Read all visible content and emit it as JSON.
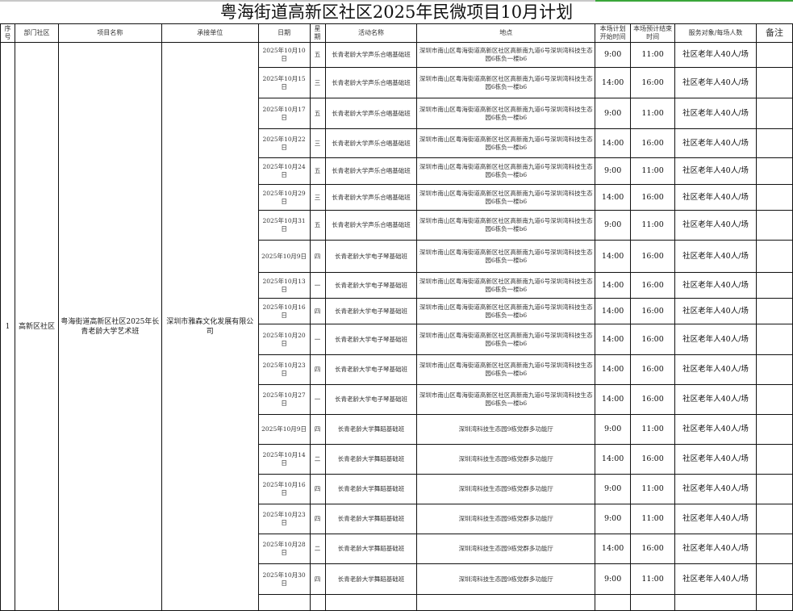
{
  "title": "粤海街道高新区社区2025年民微项目10月计划",
  "headers": [
    "序号",
    "部门社区",
    "项目名称",
    "承接单位",
    "日期",
    "星期",
    "活动名称",
    "地点",
    "本场计划开始时间",
    "本场预计结束时间",
    "服务对象/每场人数",
    "备注"
  ],
  "project": {
    "no": "1",
    "community": "高新区社区",
    "name": "粤海街道高新区社区2025年长青老龄大学艺术班",
    "contractor": "深圳市雅森文化发展有限公司"
  },
  "rows": [
    {
      "date": "2025年10月10日",
      "weekday": "五",
      "activity": "长青老龄大学声乐合唱基础班",
      "location": "深圳市南山区粤海街道高新区社区高新南九道6号深圳湾科技生态园6栋负一楼b6",
      "start": "9:00",
      "end": "11:00",
      "target": "社区老年人40人/场",
      "note": ""
    },
    {
      "date": "2025年10月15日",
      "weekday": "三",
      "activity": "长青老龄大学声乐合唱基础班",
      "location": "深圳市南山区粤海街道高新区社区高新南九道6号深圳湾科技生态园6栋负一楼b6",
      "start": "14:00",
      "end": "16:00",
      "target": "社区老年人40人/场",
      "note": ""
    },
    {
      "date": "2025年10月17日",
      "weekday": "五",
      "activity": "长青老龄大学声乐合唱基础班",
      "location": "深圳市南山区粤海街道高新区社区高新南九道6号深圳湾科技生态园6栋负一楼b6",
      "start": "9:00",
      "end": "11:00",
      "target": "社区老年人40人/场",
      "note": ""
    },
    {
      "date": "2025年10月22日",
      "weekday": "三",
      "activity": "长青老龄大学声乐合唱基础班",
      "location": "深圳市南山区粤海街道高新区社区高新南九道6号深圳湾科技生态园6栋负一楼b6",
      "start": "14:00",
      "end": "16:00",
      "target": "社区老年人40人/场",
      "note": ""
    },
    {
      "date": "2025年10月24日",
      "weekday": "五",
      "activity": "长青老龄大学声乐合唱基础班",
      "location": "深圳市南山区粤海街道高新区社区高新南九道6号深圳湾科技生态园6栋负一楼b6",
      "start": "9:00",
      "end": "11:00",
      "target": "社区老年人40人/场",
      "note": ""
    },
    {
      "date": "2025年10月29日",
      "weekday": "三",
      "activity": "长青老龄大学声乐合唱基础班",
      "location": "深圳市南山区粤海街道高新区社区高新南九道6号深圳湾科技生态园6栋负一楼b6",
      "start": "14:00",
      "end": "16:00",
      "target": "社区老年人40人/场",
      "note": ""
    },
    {
      "date": "2025年10月31日",
      "weekday": "五",
      "activity": "长青老龄大学声乐合唱基础班",
      "location": "深圳市南山区粤海街道高新区社区高新南九道6号深圳湾科技生态园6栋负一楼b6",
      "start": "9:00",
      "end": "11:00",
      "target": "社区老年人40人/场",
      "note": ""
    },
    {
      "date": "2025年10月9日",
      "weekday": "四",
      "activity": "长青老龄大学电子琴基础班",
      "location": "深圳市南山区粤海街道高新区社区高新南九道6号深圳湾科技生态园6栋负一楼b6",
      "start": "14:00",
      "end": "16:00",
      "target": "社区老年人40人/场",
      "note": ""
    },
    {
      "date": "2025年10月13日",
      "weekday": "一",
      "activity": "长青老龄大学电子琴基础班",
      "location": "深圳市南山区粤海街道高新区社区高新南九道6号深圳湾科技生态园6栋负一楼b6",
      "start": "14:00",
      "end": "16:00",
      "target": "社区老年人40人/场",
      "note": ""
    },
    {
      "date": "2025年10月16日",
      "weekday": "四",
      "activity": "长青老龄大学电子琴基础班",
      "location": "深圳市南山区粤海街道高新区社区高新南九道6号深圳湾科技生态园6栋负一楼b6",
      "start": "14:00",
      "end": "16:00",
      "target": "社区老年人40人/场",
      "note": ""
    },
    {
      "date": "2025年10月20日",
      "weekday": "一",
      "activity": "长青老龄大学电子琴基础班",
      "location": "深圳市南山区粤海街道高新区社区高新南九道6号深圳湾科技生态园6栋负一楼b6",
      "start": "14:00",
      "end": "16:00",
      "target": "社区老年人40人/场",
      "note": ""
    },
    {
      "date": "2025年10月23日",
      "weekday": "四",
      "activity": "长青老龄大学电子琴基础班",
      "location": "深圳市南山区粤海街道高新区社区高新南九道6号深圳湾科技生态园6栋负一楼b6",
      "start": "14:00",
      "end": "16:00",
      "target": "社区老年人40人/场",
      "note": ""
    },
    {
      "date": "2025年10月27日",
      "weekday": "一",
      "activity": "长青老龄大学电子琴基础班",
      "location": "深圳市南山区粤海街道高新区社区高新南九道6号深圳湾科技生态园6栋负一楼b6",
      "start": "14:00",
      "end": "16:00",
      "target": "社区老年人40人/场",
      "note": ""
    },
    {
      "date": "2025年10月9日",
      "weekday": "四",
      "activity": "长青老龄大学舞蹈基础班",
      "location": "深圳湾科技生态园9栋党群多功能厅",
      "start": "9:00",
      "end": "11:00",
      "target": "社区老年人40人/场",
      "note": ""
    },
    {
      "date": "2025年10月14日",
      "weekday": "二",
      "activity": "长青老龄大学舞蹈基础班",
      "location": "深圳湾科技生态园9栋党群多功能厅",
      "start": "14:00",
      "end": "16:00",
      "target": "社区老年人40人/场",
      "note": ""
    },
    {
      "date": "2025年10月16日",
      "weekday": "四",
      "activity": "长青老龄大学舞蹈基础班",
      "location": "深圳湾科技生态园9栋党群多功能厅",
      "start": "9:00",
      "end": "11:00",
      "target": "社区老年人40人/场",
      "note": ""
    },
    {
      "date": "2025年10月23日",
      "weekday": "四",
      "activity": "长青老龄大学舞蹈基础班",
      "location": "深圳湾科技生态园9栋党群多功能厅",
      "start": "9:00",
      "end": "11:00",
      "target": "社区老年人40人/场",
      "note": ""
    },
    {
      "date": "2025年10月28日",
      "weekday": "二",
      "activity": "长青老龄大学舞蹈基础班",
      "location": "深圳湾科技生态园9栋党群多功能厅",
      "start": "14:00",
      "end": "16:00",
      "target": "社区老年人40人/场",
      "note": ""
    },
    {
      "date": "2025年10月30日",
      "weekday": "四",
      "activity": "长青老龄大学舞蹈基础班",
      "location": "深圳湾科技生态园9栋党群多功能厅",
      "start": "9:00",
      "end": "11:00",
      "target": "社区老年人40人/场",
      "note": ""
    }
  ]
}
